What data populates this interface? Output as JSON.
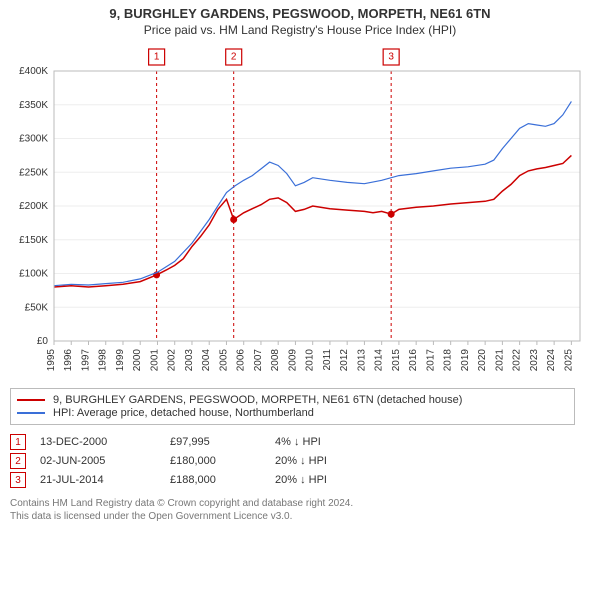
{
  "title": "9, BURGHLEY GARDENS, PEGSWOOD, MORPETH, NE61 6TN",
  "subtitle": "Price paid vs. HM Land Registry's House Price Index (HPI)",
  "chart": {
    "type": "line",
    "background_color": "#ffffff",
    "grid_color": "#eeeeee",
    "border_color": "#bbbbbb",
    "x": {
      "min": 1995,
      "max": 2025.5,
      "ticks": [
        1995,
        1996,
        1997,
        1998,
        1999,
        2000,
        2001,
        2002,
        2003,
        2004,
        2005,
        2006,
        2007,
        2008,
        2009,
        2010,
        2011,
        2012,
        2013,
        2014,
        2015,
        2016,
        2017,
        2018,
        2019,
        2020,
        2021,
        2022,
        2023,
        2024,
        2025
      ]
    },
    "y": {
      "min": 0,
      "max": 400000,
      "tick_step": 50000,
      "labels": [
        "£0",
        "£50K",
        "£100K",
        "£150K",
        "£200K",
        "£250K",
        "£300K",
        "£350K",
        "£400K"
      ]
    },
    "series": [
      {
        "name": "9, BURGHLEY GARDENS, PEGSWOOD, MORPETH, NE61 6TN (detached house)",
        "color": "#cc0000",
        "width": 1.5,
        "points": [
          [
            1995,
            80000
          ],
          [
            1996,
            82000
          ],
          [
            1997,
            80000
          ],
          [
            1998,
            82000
          ],
          [
            1999,
            84000
          ],
          [
            2000,
            88000
          ],
          [
            2000.95,
            97995
          ],
          [
            2001.5,
            105000
          ],
          [
            2002,
            112000
          ],
          [
            2002.5,
            122000
          ],
          [
            2003,
            140000
          ],
          [
            2003.5,
            155000
          ],
          [
            2004,
            172000
          ],
          [
            2004.5,
            195000
          ],
          [
            2005,
            210000
          ],
          [
            2005.42,
            180000
          ],
          [
            2006,
            190000
          ],
          [
            2006.5,
            196000
          ],
          [
            2007,
            202000
          ],
          [
            2007.5,
            210000
          ],
          [
            2008,
            212000
          ],
          [
            2008.5,
            205000
          ],
          [
            2009,
            192000
          ],
          [
            2009.5,
            195000
          ],
          [
            2010,
            200000
          ],
          [
            2011,
            196000
          ],
          [
            2012,
            194000
          ],
          [
            2013,
            192000
          ],
          [
            2013.5,
            190000
          ],
          [
            2014,
            192000
          ],
          [
            2014.55,
            188000
          ],
          [
            2015,
            195000
          ],
          [
            2016,
            198000
          ],
          [
            2017,
            200000
          ],
          [
            2018,
            203000
          ],
          [
            2019,
            205000
          ],
          [
            2020,
            207000
          ],
          [
            2020.5,
            210000
          ],
          [
            2021,
            222000
          ],
          [
            2021.5,
            232000
          ],
          [
            2022,
            245000
          ],
          [
            2022.5,
            252000
          ],
          [
            2023,
            255000
          ],
          [
            2023.5,
            257000
          ],
          [
            2024,
            260000
          ],
          [
            2024.5,
            263000
          ],
          [
            2025,
            275000
          ]
        ]
      },
      {
        "name": "HPI: Average price, detached house, Northumberland",
        "color": "#3a6fd8",
        "width": 1.2,
        "points": [
          [
            1995,
            82000
          ],
          [
            1996,
            84000
          ],
          [
            1997,
            83000
          ],
          [
            1998,
            85000
          ],
          [
            1999,
            87000
          ],
          [
            2000,
            92000
          ],
          [
            2001,
            102000
          ],
          [
            2002,
            118000
          ],
          [
            2003,
            145000
          ],
          [
            2004,
            180000
          ],
          [
            2004.5,
            200000
          ],
          [
            2005,
            220000
          ],
          [
            2005.5,
            230000
          ],
          [
            2006,
            238000
          ],
          [
            2006.5,
            245000
          ],
          [
            2007,
            255000
          ],
          [
            2007.5,
            265000
          ],
          [
            2008,
            260000
          ],
          [
            2008.5,
            248000
          ],
          [
            2009,
            230000
          ],
          [
            2009.5,
            235000
          ],
          [
            2010,
            242000
          ],
          [
            2011,
            238000
          ],
          [
            2012,
            235000
          ],
          [
            2013,
            233000
          ],
          [
            2014,
            238000
          ],
          [
            2015,
            245000
          ],
          [
            2016,
            248000
          ],
          [
            2017,
            252000
          ],
          [
            2018,
            256000
          ],
          [
            2019,
            258000
          ],
          [
            2020,
            262000
          ],
          [
            2020.5,
            268000
          ],
          [
            2021,
            285000
          ],
          [
            2021.5,
            300000
          ],
          [
            2022,
            315000
          ],
          [
            2022.5,
            322000
          ],
          [
            2023,
            320000
          ],
          [
            2023.5,
            318000
          ],
          [
            2024,
            322000
          ],
          [
            2024.5,
            335000
          ],
          [
            2025,
            355000
          ]
        ]
      }
    ],
    "markers": [
      {
        "n": "1",
        "x": 2000.95,
        "y": 97995
      },
      {
        "n": "2",
        "x": 2005.42,
        "y": 180000
      },
      {
        "n": "3",
        "x": 2014.55,
        "y": 188000
      }
    ],
    "marker_color": "#cc0000",
    "marker_line_dash": "3,3"
  },
  "legend": [
    {
      "color": "#cc0000",
      "label": "9, BURGHLEY GARDENS, PEGSWOOD, MORPETH, NE61 6TN (detached house)"
    },
    {
      "color": "#3a6fd8",
      "label": "HPI: Average price, detached house, Northumberland"
    }
  ],
  "sales": [
    {
      "n": "1",
      "date": "13-DEC-2000",
      "price": "£97,995",
      "diff": "4% ↓ HPI"
    },
    {
      "n": "2",
      "date": "02-JUN-2005",
      "price": "£180,000",
      "diff": "20% ↓ HPI"
    },
    {
      "n": "3",
      "date": "21-JUL-2014",
      "price": "£188,000",
      "diff": "20% ↓ HPI"
    }
  ],
  "footnote1": "Contains HM Land Registry data © Crown copyright and database right 2024.",
  "footnote2": "This data is licensed under the Open Government Licence v3.0."
}
